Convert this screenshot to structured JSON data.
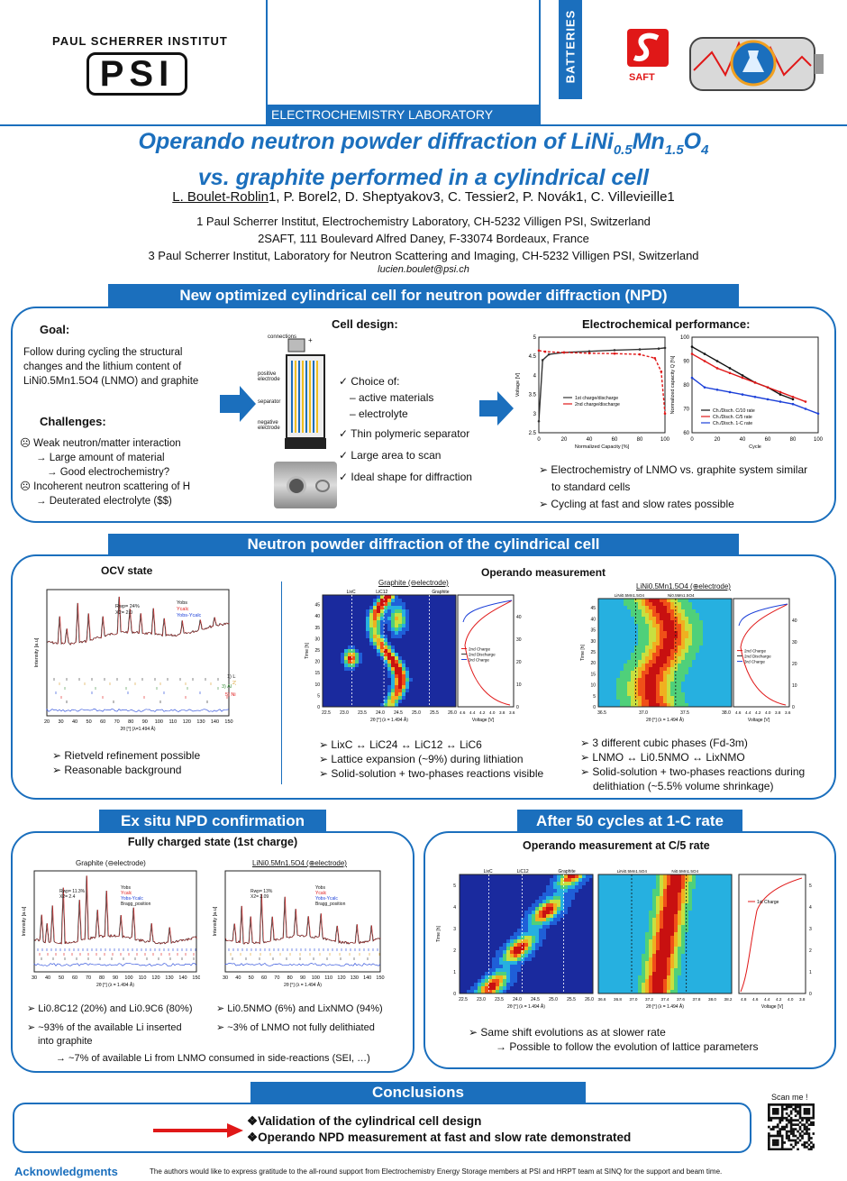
{
  "header": {
    "psi_title": "PAUL SCHERRER INSTITUT",
    "psi_logo_text": "PSI",
    "lab": "ELECTROCHEMISTRY LABORATORY",
    "batteries": "BATTERIES",
    "saft": "SAFT"
  },
  "title": {
    "line1_pre": "Operando neutron powder diffraction of LiNi",
    "line1_sub1": "0.5",
    "line1_mid": "Mn",
    "line1_sub2": "1.5",
    "line1_post": "O",
    "line1_sub3": "4",
    "line2": "vs. graphite performed in a cylindrical cell"
  },
  "authors": {
    "a1": "L. Boulet-Roblin",
    "rest": "1, P. Borel2, D. Sheptyakov3, C. Tessier2, P. Novák1, C. Villevieille1",
    "aff1": "1 Paul Scherrer Institut, Electrochemistry Laboratory, CH-5232 Villigen PSI, Switzerland",
    "aff2": "2SAFT, 111 Boulevard Alfred Daney, F-33074 Bordeaux, France",
    "aff3": "3 Paul Scherrer Institut, Laboratory for Neutron Scattering and Imaging, CH-5232 Villigen PSI, Switzerland",
    "email": "lucien.boulet@psi.ch"
  },
  "section1": {
    "banner": "New optimized cylindrical cell for neutron powder diffraction (NPD)",
    "goal_title": "Goal:",
    "goal_l1": "Follow during cycling the structural",
    "goal_l2": "changes and the lithium content of",
    "goal_l3": "LiNi0.5Mn1.5O4 (LNMO) and graphite",
    "challenges_title": "Challenges:",
    "ch1": "☹ Weak neutron/matter interaction",
    "ch2": "→ Large amount of material",
    "ch3": "→ Good electrochemistry?",
    "ch4": "☹ Incoherent neutron scattering of H",
    "ch5": "→ Deuterated electrolyte ($$)",
    "design_title": "Cell design:",
    "cell_labels": [
      "connections",
      "positive electrode",
      "separator",
      "negative electrode"
    ],
    "d1": "✓ Choice of:",
    "d2": "– active materials",
    "d3": "– electrolyte",
    "d4": "✓ Thin polymeric separator",
    "d5": "✓ Large area to scan",
    "d6": "✓ Ideal shape for diffraction",
    "perf_title": "Electrochemical performance:",
    "p1": "➢ Electrochemistry of LNMO vs. graphite system similar",
    "p2": "to standard cells",
    "p3": "➢ Cycling at fast and slow rates possible",
    "chart1": {
      "xlabel": "Normalized Capacity [%]",
      "ylabel": "Voltage [V]",
      "legend1": "1st charge/discharge",
      "legend2": "2nd charge/discharge"
    },
    "chart2": {
      "xlabel": "Cycle",
      "ylabel": "Normalized capacity Q [%]",
      "legend1": "Ch./Disch. C/10 rate",
      "legend2": "Ch./Disch. C/5 rate",
      "legend3": "Ch./Disch. 1-C rate"
    }
  },
  "section2": {
    "banner": "Neutron powder diffraction of the cylindrical cell",
    "ocv_title": "OCV state",
    "ocv_b1": "➢ Rietveld refinement possible",
    "ocv_b2": "➢ Reasonable background",
    "ocv_legend": [
      "Yobs",
      "Ycalc",
      "Yobs-Ycalc"
    ],
    "ocv_phases": [
      "1) LNMO",
      "2) Fe",
      "3) Al",
      "4) Cu",
      "5) Ni",
      "6) graphite"
    ],
    "ocv_rwp": "Rwp= 24%",
    "ocv_chi": "X2= 2.0",
    "ocv_xlabel": "2θ [°] (λ=1.494 Å)",
    "ocv_ylabel": "Intensity [a.u]",
    "operando_title": "Operando measurement",
    "graphite_title": "Graphite (⊖electrode)",
    "lnmo_title": "LiNi0.5Mn1.5O4 (⊕electrode)",
    "g_b1": "➢ LixC ↔ LiC24 ↔ LiC12 ↔ LiC6",
    "g_b2": "➢ Lattice expansion (~9%) during lithiation",
    "g_b3": "➢ Solid-solution + two-phases reactions visible",
    "l_b1": "➢ 3 different cubic phases (Fd-3m)",
    "l_b2": "➢ LNMO ↔ Li0.5NMO ↔ LixNMO",
    "l_b3": "➢ Solid-solution + two-phases reactions during",
    "l_b4": "delithiation (~5.5% volume shrinkage)",
    "hm_xlabel": "2θ [°] (λ = 1.494 Å)",
    "hm_ylabel": "Time [h]",
    "v_xlabel": "Voltage [V]",
    "v_legend": [
      "2nd Charge",
      "2nd Discharge",
      "3rd Charge"
    ]
  },
  "section3": {
    "banner": "Ex situ NPD confirmation",
    "subtitle": "Fully charged state (1st charge)",
    "gtitle": "Graphite (⊖electrode)",
    "ltitle": "LiNi0.5Mn1.5O4 (⊕electrode)",
    "g_rwp": "Rwp= 11.3%",
    "g_chi": "X2= 2.4",
    "l_rwp": "Rwp= 13%",
    "l_chi": "X2= 2.09",
    "legend": [
      "Yobs",
      "Ycalc",
      "Yobs-Ycalc",
      "Bragg_position"
    ],
    "g_b1": "➢ Li0.8C12 (20%) and Li0.9C6 (80%)",
    "g_b2": "➢ ~93% of the available Li inserted",
    "g_b3": "into graphite",
    "l_b1": "➢ Li0.5NMO (6%) and LixNMO (94%)",
    "l_b2": "➢ ~3% of  LNMO not fully delithiated",
    "footer": "→ ~7% of available Li from LNMO consumed in side-reactions (SEI, …)"
  },
  "section4": {
    "banner": "After 50 cycles at 1-C rate",
    "subtitle": "Operando measurement at C/5 rate",
    "b1": "➢ Same shift evolutions as at slower rate",
    "b2": "→ Possible to follow the evolution of lattice parameters",
    "legend": "1st Charge"
  },
  "conclusions": {
    "banner": "Conclusions",
    "c1": "❖Validation of the cylindrical cell design",
    "c2": "❖Operando NPD measurement at fast and slow rate demonstrated",
    "scan": "Scan me !"
  },
  "ack": {
    "title": "Acknowledgments",
    "text": "The authors would like to express gratitude to the all-round support from Electrochemistry Energy Storage members at PSI and  HRPT team  at SINQ for the support and beam time."
  },
  "colors": {
    "accent": "#1b6fbd",
    "title_blue": "#1b6fbd",
    "red": "#e01818"
  },
  "chart_data": [
    {
      "type": "line",
      "title": "Electrochemical performance - voltage profile",
      "xlabel": "Normalized Capacity [%]",
      "ylabel": "Voltage [V]",
      "xlim": [
        0,
        100
      ],
      "ylim": [
        2.5,
        5.0
      ],
      "series": [
        {
          "name": "1st charge/discharge",
          "x": [
            0,
            3,
            8,
            20,
            40,
            60,
            80,
            95,
            100
          ],
          "y": [
            2.8,
            4.4,
            4.55,
            4.6,
            4.63,
            4.66,
            4.68,
            4.7,
            4.72
          ]
        },
        {
          "name": "2nd charge/discharge",
          "x": [
            0,
            5,
            20,
            40,
            60,
            80,
            92,
            97,
            100
          ],
          "y": [
            4.65,
            4.62,
            4.6,
            4.58,
            4.57,
            4.55,
            4.45,
            4.1,
            3.0
          ]
        }
      ]
    },
    {
      "type": "line",
      "title": "Electrochemical performance - capacity retention",
      "xlabel": "Cycle",
      "ylabel": "Normalized capacity Q [%]",
      "xlim": [
        0,
        100
      ],
      "ylim": [
        60,
        100
      ],
      "series": [
        {
          "name": "Ch./Disch. C/10 rate",
          "x": [
            0,
            10,
            20,
            30,
            40,
            50,
            60,
            70,
            80
          ],
          "y": [
            96,
            93,
            90,
            87,
            84,
            81,
            79,
            76,
            74
          ]
        },
        {
          "name": "Ch./Disch. C/5 rate",
          "x": [
            0,
            10,
            20,
            30,
            40,
            50,
            60,
            70,
            80,
            90
          ],
          "y": [
            93,
            90,
            87,
            85,
            83,
            81,
            79,
            77,
            75,
            73
          ]
        },
        {
          "name": "Ch./Disch. 1-C rate",
          "x": [
            0,
            10,
            20,
            30,
            40,
            50,
            60,
            70,
            80,
            90,
            100
          ],
          "y": [
            83,
            79,
            78,
            77,
            76,
            75,
            74,
            73,
            72,
            70,
            68
          ]
        }
      ]
    }
  ]
}
